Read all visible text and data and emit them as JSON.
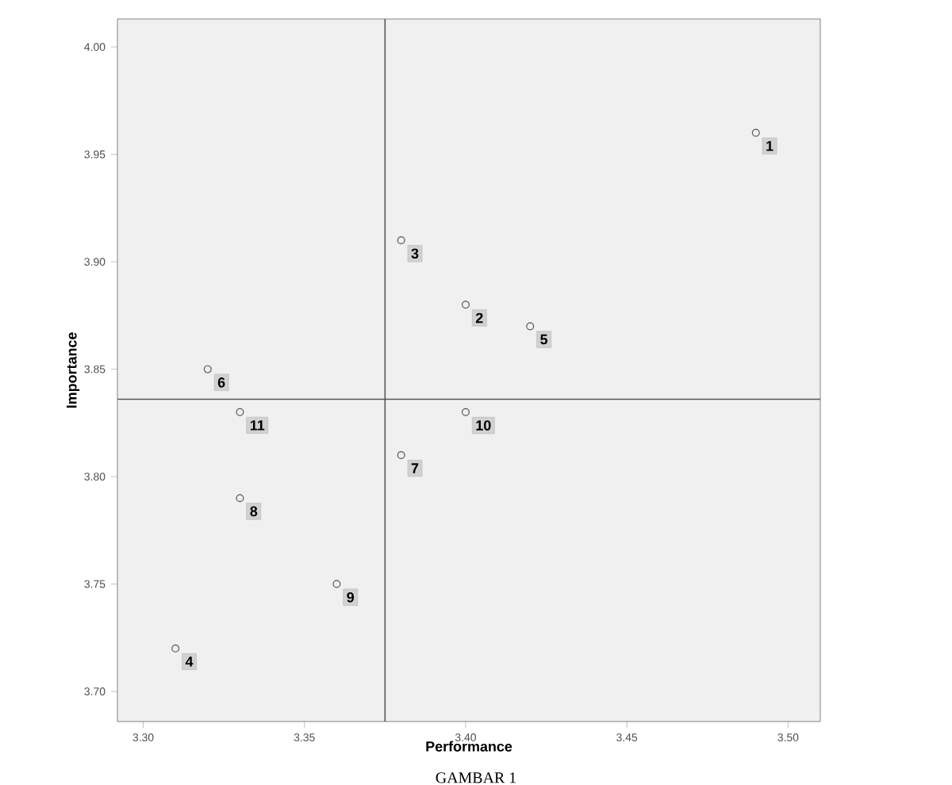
{
  "chart_data": {
    "type": "scatter",
    "xlabel": "Performance",
    "ylabel": "Importance",
    "x": [
      3.49,
      3.4,
      3.38,
      3.31,
      3.42,
      3.32,
      3.38,
      3.33,
      3.36,
      3.4,
      3.33
    ],
    "series": [
      {
        "color": "#555555",
        "values": [
          3.96,
          3.88,
          3.91,
          3.72,
          3.87,
          3.85,
          3.81,
          3.79,
          3.75,
          3.83,
          3.83
        ]
      }
    ],
    "marker": "circle",
    "xlim": [
      3.292,
      3.51
    ],
    "ylim": [
      3.686,
      4.013
    ],
    "xticks": [
      {
        "value": 3.3,
        "label": "3.30"
      },
      3.35,
      {
        "value": 3.4,
        "label": "3.40"
      },
      3.45,
      {
        "value": 3.5,
        "label": "3.50"
      }
    ],
    "yticks": [
      {
        "value": 3.7,
        "label": "3.70"
      },
      3.75,
      {
        "value": 3.8,
        "label": "3.80"
      },
      3.85,
      {
        "value": 3.9,
        "label": "3.90"
      },
      3.95,
      {
        "value": 4.0,
        "label": "4.00"
      }
    ],
    "ref_lines": [
      {
        "axis": "x",
        "value": 3.375,
        "color": "#555555"
      },
      {
        "axis": "y",
        "value": 3.836,
        "color": "#555555"
      }
    ],
    "annotations": [
      {
        "text": "1",
        "x": 3.49,
        "y": 3.96
      },
      {
        "text": "2",
        "x": 3.4,
        "y": 3.88
      },
      {
        "text": "3",
        "x": 3.38,
        "y": 3.91
      },
      {
        "text": "4",
        "x": 3.31,
        "y": 3.72
      },
      {
        "text": "5",
        "x": 3.42,
        "y": 3.87
      },
      {
        "text": "6",
        "x": 3.32,
        "y": 3.85
      },
      {
        "text": "7",
        "x": 3.38,
        "y": 3.81
      },
      {
        "text": "8",
        "x": 3.33,
        "y": 3.79
      },
      {
        "text": "9",
        "x": 3.36,
        "y": 3.75
      },
      {
        "text": "10",
        "x": 3.4,
        "y": 3.83
      },
      {
        "text": "11",
        "x": 3.33,
        "y": 3.83
      },
      "GAMBAR 1"
    ],
    "grid": false
  }
}
